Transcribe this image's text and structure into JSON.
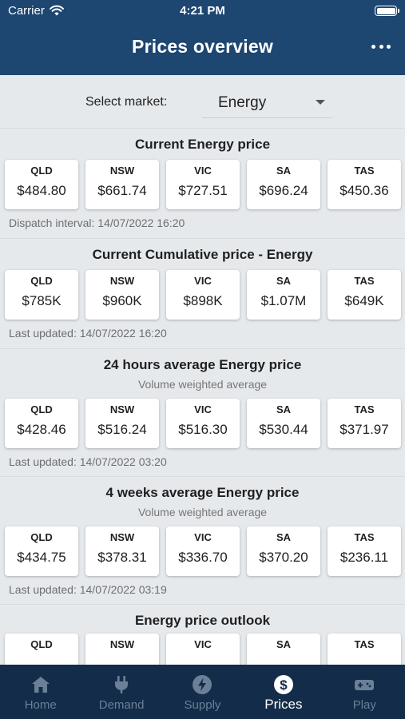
{
  "status_bar": {
    "carrier": "Carrier",
    "time": "4:21 PM"
  },
  "header": {
    "title": "Prices overview"
  },
  "market": {
    "label": "Select market:",
    "value": "Energy"
  },
  "sections": [
    {
      "title": "Current Energy price",
      "footer": "Dispatch interval: 14/07/2022 16:20",
      "cards": [
        {
          "region": "QLD",
          "value": "$484.80"
        },
        {
          "region": "NSW",
          "value": "$661.74"
        },
        {
          "region": "VIC",
          "value": "$727.51"
        },
        {
          "region": "SA",
          "value": "$696.24"
        },
        {
          "region": "TAS",
          "value": "$450.36"
        }
      ]
    },
    {
      "title": "Current Cumulative price - Energy",
      "footer": "Last updated: 14/07/2022 16:20",
      "cards": [
        {
          "region": "QLD",
          "value": "$785K"
        },
        {
          "region": "NSW",
          "value": "$960K"
        },
        {
          "region": "VIC",
          "value": "$898K"
        },
        {
          "region": "SA",
          "value": "$1.07M"
        },
        {
          "region": "TAS",
          "value": "$649K"
        }
      ]
    },
    {
      "title": "24 hours average Energy price",
      "subtitle": "Volume weighted average",
      "footer": "Last updated: 14/07/2022 03:20",
      "cards": [
        {
          "region": "QLD",
          "value": "$428.46"
        },
        {
          "region": "NSW",
          "value": "$516.24"
        },
        {
          "region": "VIC",
          "value": "$516.30"
        },
        {
          "region": "SA",
          "value": "$530.44"
        },
        {
          "region": "TAS",
          "value": "$371.97"
        }
      ]
    },
    {
      "title": "4 weeks average Energy price",
      "subtitle": "Volume weighted average",
      "footer": "Last updated: 14/07/2022 03:19",
      "cards": [
        {
          "region": "QLD",
          "value": "$434.75"
        },
        {
          "region": "NSW",
          "value": "$378.31"
        },
        {
          "region": "VIC",
          "value": "$336.70"
        },
        {
          "region": "SA",
          "value": "$370.20"
        },
        {
          "region": "TAS",
          "value": "$236.11"
        }
      ]
    },
    {
      "title": "Energy price outlook",
      "cards": [
        {
          "region": "QLD",
          "color": "#e53935"
        },
        {
          "region": "NSW",
          "color": "#26c6a6"
        },
        {
          "region": "VIC",
          "color": "#1e63d6"
        },
        {
          "region": "SA",
          "color": "#f4e21b"
        },
        {
          "region": "TAS",
          "color": "#c41fd6"
        }
      ]
    }
  ],
  "tabs": [
    {
      "label": "Home",
      "icon": "home-icon",
      "active": false
    },
    {
      "label": "Demand",
      "icon": "plug-icon",
      "active": false
    },
    {
      "label": "Supply",
      "icon": "lightning-icon",
      "active": false
    },
    {
      "label": "Prices",
      "icon": "dollar-icon",
      "active": true
    },
    {
      "label": "Play",
      "icon": "gamepad-icon",
      "active": false
    }
  ],
  "colors": {
    "header": "#1d4671",
    "tabbar": "#132c49",
    "background": "#e6e9ec"
  }
}
